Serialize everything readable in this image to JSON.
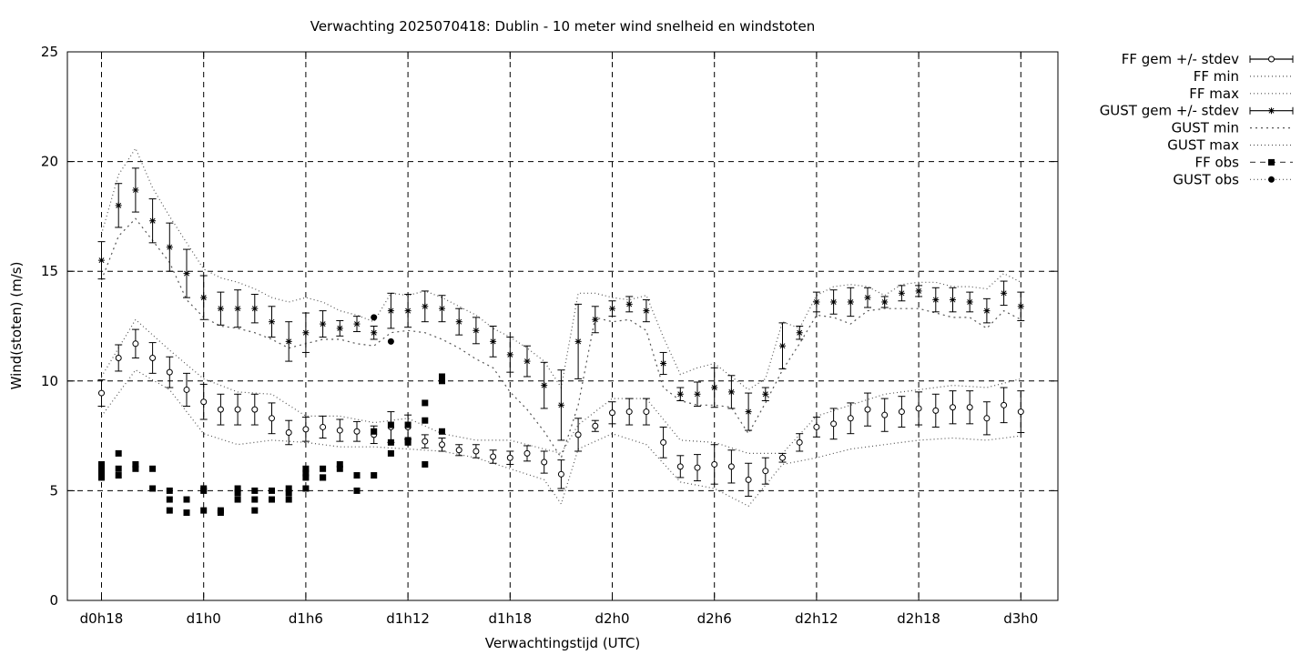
{
  "chart_data": {
    "type": "scatter",
    "title": "Verwachting 2025070418: Dublin - 10 meter wind snelheid en windstoten",
    "xlabel": "Verwachtingstijd (UTC)",
    "ylabel": "Wind(stoten) (m/s)",
    "xlim": [
      -2,
      56
    ],
    "ylim": [
      0,
      25
    ],
    "x_unit": "hours since d0h18",
    "x_ticks": [
      {
        "x": 0,
        "label": "d0h18"
      },
      {
        "x": 6,
        "label": "d1h0"
      },
      {
        "x": 12,
        "label": "d1h6"
      },
      {
        "x": 18,
        "label": "d1h12"
      },
      {
        "x": 24,
        "label": "d1h18"
      },
      {
        "x": 30,
        "label": "d2h0"
      },
      {
        "x": 36,
        "label": "d2h6"
      },
      {
        "x": 42,
        "label": "d2h12"
      },
      {
        "x": 48,
        "label": "d2h18"
      },
      {
        "x": 54,
        "label": "d3h0"
      }
    ],
    "y_ticks": [
      0,
      5,
      10,
      15,
      20,
      25
    ],
    "grid": true,
    "legend_position": "outside-right",
    "legend": [
      "FF gem +/- stdev",
      "FF min",
      "FF max",
      "GUST gem +/- stdev",
      "GUST min",
      "GUST max",
      "FF obs",
      "GUST obs"
    ],
    "ff_mean": {
      "x": [
        0,
        1,
        2,
        3,
        4,
        5,
        6,
        7,
        8,
        9,
        10,
        11,
        12,
        13,
        14,
        15,
        16,
        17,
        18,
        19,
        20,
        21,
        22,
        23,
        24,
        25,
        26,
        27,
        28,
        29,
        30,
        31,
        32,
        33,
        34,
        35,
        36,
        37,
        38,
        39,
        40,
        41,
        42,
        43,
        44,
        45,
        46,
        47,
        48,
        49,
        50,
        51,
        52,
        53,
        54
      ],
      "y": [
        9.45,
        11.05,
        11.7,
        11.05,
        10.4,
        9.6,
        9.05,
        8.7,
        8.7,
        8.7,
        8.3,
        7.65,
        7.8,
        7.9,
        7.75,
        7.7,
        7.55,
        7.9,
        7.9,
        7.25,
        7.1,
        6.85,
        6.8,
        6.55,
        6.5,
        6.7,
        6.3,
        5.75,
        7.55,
        7.95,
        8.55,
        8.6,
        8.6,
        7.2,
        6.1,
        6.05,
        6.2,
        6.1,
        5.5,
        5.9,
        6.5,
        7.2,
        7.9,
        8.05,
        8.3,
        8.7,
        8.45,
        8.6,
        8.75,
        8.65,
        8.8,
        8.8,
        8.3,
        8.9,
        8.6
      ],
      "stdev": [
        0.6,
        0.6,
        0.65,
        0.7,
        0.7,
        0.75,
        0.8,
        0.7,
        0.7,
        0.7,
        0.7,
        0.55,
        0.55,
        0.5,
        0.5,
        0.45,
        0.4,
        0.7,
        0.55,
        0.3,
        0.3,
        0.25,
        0.3,
        0.3,
        0.3,
        0.35,
        0.5,
        0.65,
        0.75,
        0.25,
        0.5,
        0.6,
        0.6,
        0.7,
        0.5,
        0.6,
        0.9,
        0.75,
        0.75,
        0.6,
        0.2,
        0.4,
        0.45,
        0.7,
        0.7,
        0.75,
        0.75,
        0.7,
        0.75,
        0.75,
        0.75,
        0.75,
        0.75,
        0.8,
        0.95
      ]
    },
    "ff_min": {
      "x": [
        0,
        2,
        4,
        6,
        8,
        10,
        12,
        14,
        16,
        18,
        20,
        22,
        24,
        26,
        27,
        28,
        30,
        32,
        34,
        36,
        38,
        40,
        42,
        44,
        46,
        48,
        50,
        52,
        54
      ],
      "y": [
        8.4,
        10.5,
        9.6,
        7.6,
        7.1,
        7.3,
        7.2,
        7.0,
        7.0,
        6.9,
        6.8,
        6.5,
        6.0,
        5.5,
        4.4,
        6.9,
        7.6,
        7.1,
        5.4,
        5.1,
        4.3,
        6.2,
        6.5,
        6.9,
        7.1,
        7.3,
        7.4,
        7.3,
        7.5
      ]
    },
    "ff_max": {
      "x": [
        0,
        2,
        4,
        6,
        8,
        10,
        12,
        14,
        16,
        18,
        20,
        22,
        24,
        26,
        27,
        28,
        30,
        32,
        34,
        36,
        38,
        40,
        42,
        44,
        46,
        48,
        50,
        52,
        54
      ],
      "y": [
        10.2,
        12.8,
        11.4,
        10.1,
        9.5,
        9.4,
        8.4,
        8.4,
        8.1,
        8.3,
        7.6,
        7.3,
        7.3,
        6.9,
        6.7,
        8.0,
        9.2,
        9.2,
        7.3,
        7.2,
        6.7,
        6.7,
        8.4,
        8.9,
        9.4,
        9.6,
        9.8,
        9.7,
        10.1
      ]
    },
    "gust_mean": {
      "x": [
        0,
        1,
        2,
        3,
        4,
        5,
        6,
        7,
        8,
        9,
        10,
        11,
        12,
        13,
        14,
        15,
        16,
        17,
        18,
        19,
        20,
        21,
        22,
        23,
        24,
        25,
        26,
        27,
        28,
        29,
        30,
        31,
        32,
        33,
        34,
        35,
        36,
        37,
        38,
        39,
        40,
        41,
        42,
        43,
        44,
        45,
        46,
        47,
        48,
        49,
        50,
        51,
        52,
        53,
        54
      ],
      "y": [
        15.5,
        18.0,
        18.7,
        17.3,
        16.1,
        14.9,
        13.8,
        13.3,
        13.3,
        13.3,
        12.7,
        11.8,
        12.2,
        12.6,
        12.4,
        12.6,
        12.2,
        13.2,
        13.2,
        13.4,
        13.3,
        12.7,
        12.3,
        11.8,
        11.2,
        10.9,
        9.8,
        8.9,
        11.8,
        12.8,
        13.3,
        13.5,
        13.2,
        10.8,
        9.4,
        9.4,
        9.7,
        9.5,
        8.6,
        9.4,
        11.6,
        12.2,
        13.6,
        13.6,
        13.6,
        13.8,
        13.6,
        14.0,
        14.1,
        13.7,
        13.7,
        13.6,
        13.2,
        14.0,
        13.4
      ]
    },
    "gust_stdev": [
      0.85,
      1.0,
      1.0,
      1.0,
      1.1,
      1.1,
      1.0,
      0.75,
      0.85,
      0.65,
      0.7,
      0.9,
      0.9,
      0.6,
      0.35,
      0.35,
      0.3,
      0.8,
      0.75,
      0.7,
      0.6,
      0.6,
      0.6,
      0.7,
      0.8,
      0.7,
      1.05,
      1.6,
      1.7,
      0.6,
      0.35,
      0.35,
      0.5,
      0.5,
      0.3,
      0.55,
      0.9,
      0.75,
      0.85,
      0.3,
      1.05,
      0.3,
      0.45,
      0.55,
      0.65,
      0.45,
      0.25,
      0.35,
      0.25,
      0.55,
      0.55,
      0.45,
      0.55,
      0.55,
      0.65
    ],
    "gust_min": {
      "x": [
        0,
        1,
        2,
        3,
        4,
        5,
        6,
        7,
        8,
        9,
        10,
        11,
        12,
        13,
        14,
        15,
        16,
        17,
        18,
        19,
        20,
        21,
        22,
        23,
        24,
        25,
        26,
        27,
        28,
        29,
        30,
        31,
        32,
        33,
        34,
        35,
        36,
        37,
        38,
        39,
        40,
        41,
        42,
        43,
        44,
        45,
        46,
        47,
        48,
        49,
        50,
        51,
        52,
        53,
        54
      ],
      "y": [
        14.6,
        16.6,
        17.4,
        16.4,
        15.4,
        13.7,
        12.9,
        12.5,
        12.4,
        12.2,
        11.9,
        11.5,
        11.7,
        11.9,
        11.9,
        11.7,
        11.6,
        12.2,
        12.3,
        12.2,
        11.9,
        11.5,
        11.0,
        10.6,
        9.5,
        8.7,
        7.7,
        6.5,
        8.9,
        12.9,
        12.7,
        12.8,
        12.3,
        9.7,
        9.1,
        8.9,
        8.9,
        8.8,
        7.6,
        9.0,
        10.5,
        11.7,
        13.0,
        12.9,
        12.6,
        13.2,
        13.3,
        13.3,
        13.3,
        13.1,
        12.9,
        12.9,
        12.4,
        13.2,
        12.8
      ]
    },
    "gust_max": {
      "x": [
        0,
        1,
        2,
        3,
        4,
        5,
        6,
        7,
        8,
        9,
        10,
        11,
        12,
        13,
        14,
        15,
        16,
        17,
        18,
        19,
        20,
        21,
        22,
        23,
        24,
        25,
        26,
        27,
        28,
        29,
        30,
        31,
        32,
        33,
        34,
        35,
        36,
        37,
        38,
        39,
        40,
        41,
        42,
        43,
        44,
        45,
        46,
        47,
        48,
        49,
        50,
        51,
        52,
        53,
        54
      ],
      "y": [
        16.7,
        19.4,
        20.6,
        18.8,
        17.5,
        16.3,
        15.1,
        14.7,
        14.5,
        14.2,
        13.8,
        13.6,
        13.8,
        13.6,
        13.2,
        13.0,
        12.7,
        14.0,
        13.9,
        14.1,
        13.8,
        13.4,
        13.0,
        12.4,
        12.0,
        11.5,
        10.9,
        9.7,
        14.0,
        14.0,
        13.8,
        13.7,
        13.9,
        12.0,
        10.3,
        10.6,
        10.8,
        10.2,
        9.6,
        10.1,
        12.7,
        12.4,
        13.9,
        14.3,
        14.4,
        14.3,
        13.9,
        14.4,
        14.5,
        14.5,
        14.3,
        14.3,
        14.2,
        14.9,
        14.5
      ]
    },
    "ff_obs": {
      "x": [
        0,
        0,
        0,
        0,
        1,
        1,
        1,
        2,
        2,
        3,
        3,
        4,
        4,
        4,
        5,
        5,
        6,
        6,
        6,
        7,
        7,
        8,
        8,
        8,
        9,
        9,
        9,
        10,
        10,
        11,
        11,
        11,
        12,
        12,
        12,
        12,
        13,
        13,
        13,
        14,
        14,
        15,
        15,
        16,
        16,
        17,
        17,
        17,
        18,
        18,
        18,
        19,
        19,
        19,
        20,
        20,
        20
      ],
      "y": [
        6.2,
        6.0,
        5.8,
        5.6,
        6.7,
        6.0,
        5.7,
        6.2,
        6.0,
        6.0,
        5.1,
        5.0,
        4.6,
        4.1,
        4.6,
        4.0,
        5.1,
        5.0,
        4.1,
        4.1,
        4.0,
        5.1,
        4.9,
        4.6,
        5.0,
        4.6,
        4.1,
        5.0,
        4.6,
        5.1,
        4.9,
        4.6,
        6.0,
        5.8,
        5.6,
        5.1,
        6.0,
        5.6,
        5.6,
        6.2,
        6.0,
        5.7,
        5.0,
        5.7,
        7.7,
        6.7,
        8.0,
        7.2,
        8.0,
        7.3,
        7.2,
        9.0,
        8.2,
        6.2,
        10.2,
        10.0,
        7.7
      ]
    },
    "gust_obs": {
      "x": [
        16,
        17
      ],
      "y": [
        12.9,
        11.8
      ]
    }
  }
}
